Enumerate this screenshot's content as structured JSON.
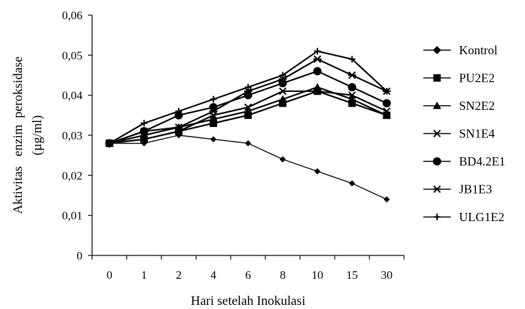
{
  "chart_data": {
    "type": "line",
    "title": "",
    "xlabel": "Hari setelah  Inokulasi",
    "ylabel_line1": "Aktivitas   enzim  peroksidase",
    "ylabel_line2": "(µg/ml)",
    "categories": [
      "0",
      "1",
      "2",
      "4",
      "6",
      "8",
      "10",
      "15",
      "30"
    ],
    "ylim": [
      0,
      0.06
    ],
    "yticks": [
      0,
      0.01,
      0.02,
      0.03,
      0.04,
      0.05,
      0.06
    ],
    "ytick_labels": [
      "0",
      "0,01",
      "0,02",
      "0,03",
      "0,04",
      "0,05",
      "0,06"
    ],
    "grid": false,
    "legend_position": "right",
    "series": [
      {
        "name": "Kontrol",
        "marker": "diamond",
        "values": [
          0.028,
          0.028,
          0.03,
          0.029,
          0.028,
          0.024,
          0.021,
          0.018,
          0.014
        ]
      },
      {
        "name": "PU2E2",
        "marker": "square",
        "values": [
          0.028,
          0.029,
          0.031,
          0.033,
          0.035,
          0.038,
          0.041,
          0.038,
          0.035
        ]
      },
      {
        "name": "SN2E2",
        "marker": "triangle",
        "values": [
          0.028,
          0.03,
          0.032,
          0.034,
          0.036,
          0.039,
          0.042,
          0.039,
          0.035
        ]
      },
      {
        "name": "SN1E4",
        "marker": "x",
        "values": [
          0.028,
          0.029,
          0.031,
          0.035,
          0.037,
          0.041,
          0.041,
          0.04,
          0.036
        ]
      },
      {
        "name": "BD4.2E1",
        "marker": "circle",
        "values": [
          0.028,
          0.031,
          0.035,
          0.037,
          0.04,
          0.043,
          0.046,
          0.042,
          0.038
        ]
      },
      {
        "name": "JB1E3",
        "marker": "star",
        "values": [
          0.028,
          0.031,
          0.032,
          0.036,
          0.041,
          0.044,
          0.049,
          0.045,
          0.041
        ]
      },
      {
        "name": "ULG1E2",
        "marker": "plus",
        "values": [
          0.028,
          0.033,
          0.036,
          0.039,
          0.042,
          0.045,
          0.051,
          0.049,
          0.041
        ]
      }
    ]
  }
}
